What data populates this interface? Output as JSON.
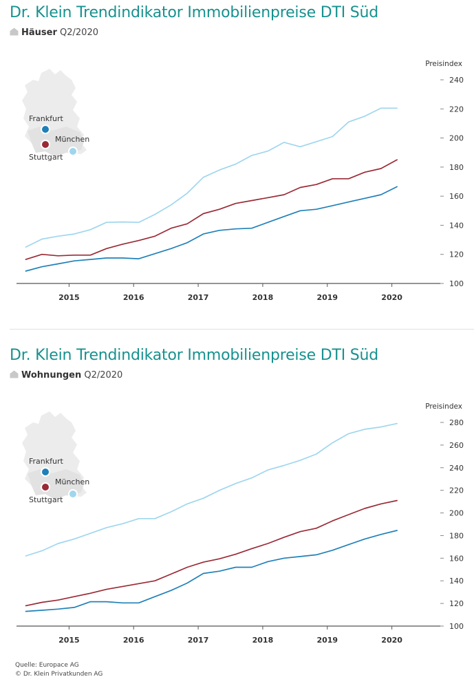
{
  "charts": [
    {
      "title": "Dr. Klein Trendindikator Immobilienpreise DTI Süd",
      "subtitle_bold": "Häuser",
      "subtitle_rest": "Q2/2020",
      "map_labels": {
        "frankfurt": "Frankfurt",
        "muenchen": "München",
        "stuttgart": "Stuttgart"
      }
    },
    {
      "title": "Dr. Klein Trendindikator Immobilienpreise DTI Süd",
      "subtitle_bold": "Wohnungen",
      "subtitle_rest": "Q2/2020",
      "map_labels": {
        "frankfurt": "Frankfurt",
        "muenchen": "München",
        "stuttgart": "Stuttgart"
      }
    }
  ],
  "source": {
    "line1": "Quelle: Europace AG",
    "line2": "© Dr. Klein Privatkunden AG"
  },
  "colors": {
    "title": "#16918e",
    "muenchen": "#9fd6ee",
    "stuttgart": "#9a2a35",
    "frankfurt": "#1f80b8",
    "map": "#ececec",
    "axis": "#555555"
  },
  "chart_data": [
    {
      "type": "line",
      "title": "Dr. Klein Trendindikator Immobilienpreise DTI Süd",
      "subtitle": "Häuser Q2/2020",
      "ylabel": "Preisindex",
      "xlabel": "",
      "ylim": [
        100,
        240
      ],
      "yticks": [
        100,
        120,
        140,
        160,
        180,
        200,
        220,
        240
      ],
      "xlim": [
        2014.25,
        2020.75
      ],
      "xticks": [
        "2015",
        "2016",
        "2017",
        "2018",
        "2019",
        "2020"
      ],
      "grid": false,
      "x": [
        2014.33,
        2014.58,
        2014.83,
        2015.08,
        2015.33,
        2015.58,
        2015.83,
        2016.08,
        2016.33,
        2016.58,
        2016.83,
        2017.08,
        2017.33,
        2017.58,
        2017.83,
        2018.08,
        2018.33,
        2018.58,
        2018.83,
        2019.08,
        2019.33,
        2019.58,
        2019.83,
        2020.08,
        2020.33,
        2020.58
      ],
      "series": [
        {
          "name": "München",
          "values": [
            125,
            130.5,
            132.5,
            134,
            137,
            142,
            142.3,
            142,
            147.5,
            154,
            162,
            173,
            178,
            182,
            188,
            191,
            197,
            194,
            197.5,
            201,
            211,
            215,
            220.5,
            220.5,
            null,
            null
          ]
        },
        {
          "name": "Stuttgart",
          "values": [
            116.5,
            120,
            119,
            119.5,
            119.5,
            124,
            127,
            129.5,
            132.5,
            138,
            141,
            148,
            151,
            155,
            157,
            159,
            161,
            166,
            168,
            172,
            172,
            176.5,
            179,
            185,
            null,
            null
          ]
        },
        {
          "name": "Frankfurt",
          "values": [
            108.5,
            111.5,
            113.5,
            115.5,
            116.5,
            117.5,
            117.5,
            117,
            120.5,
            124,
            128,
            134,
            136.5,
            137.5,
            138,
            142,
            146,
            150,
            151,
            153.5,
            156,
            158.5,
            161,
            166.5,
            null,
            null
          ]
        }
      ],
      "map_markers": [
        "Frankfurt",
        "München",
        "Stuttgart"
      ]
    },
    {
      "type": "line",
      "title": "Dr. Klein Trendindikator Immobilienpreise DTI Süd",
      "subtitle": "Wohnungen Q2/2020",
      "ylabel": "Preisindex",
      "xlabel": "",
      "ylim": [
        100,
        280
      ],
      "yticks": [
        100,
        120,
        140,
        160,
        180,
        200,
        220,
        240,
        260,
        280
      ],
      "xlim": [
        2014.25,
        2020.75
      ],
      "xticks": [
        "2015",
        "2016",
        "2017",
        "2018",
        "2019",
        "2020"
      ],
      "grid": false,
      "x": [
        2014.33,
        2014.58,
        2014.83,
        2015.08,
        2015.33,
        2015.58,
        2015.83,
        2016.08,
        2016.33,
        2016.58,
        2016.83,
        2017.08,
        2017.33,
        2017.58,
        2017.83,
        2018.08,
        2018.33,
        2018.58,
        2018.83,
        2019.08,
        2019.33,
        2019.58,
        2019.83,
        2020.08,
        2020.33,
        2020.58
      ],
      "series": [
        {
          "name": "München",
          "values": [
            162,
            166.5,
            173,
            177,
            182,
            187,
            190.5,
            195,
            195,
            201,
            208,
            213,
            220,
            226,
            231,
            238,
            242,
            246.5,
            252,
            262,
            270,
            274,
            276,
            279,
            null,
            null
          ]
        },
        {
          "name": "Stuttgart",
          "values": [
            118,
            121,
            123,
            126,
            129,
            132.5,
            135,
            137.5,
            140,
            146,
            152,
            156.5,
            159.5,
            163.5,
            168.5,
            173,
            178.5,
            183.5,
            186.5,
            193,
            198.5,
            204,
            208,
            211,
            null,
            null
          ]
        },
        {
          "name": "Frankfurt",
          "values": [
            113,
            114,
            115,
            116.5,
            121.5,
            121.5,
            120.5,
            120.5,
            126,
            131.5,
            138,
            146.5,
            148.5,
            152,
            152,
            157,
            160,
            161.5,
            163,
            167,
            172,
            177,
            181,
            184.5,
            null,
            null
          ]
        }
      ],
      "map_markers": [
        "Frankfurt",
        "München",
        "Stuttgart"
      ]
    }
  ]
}
